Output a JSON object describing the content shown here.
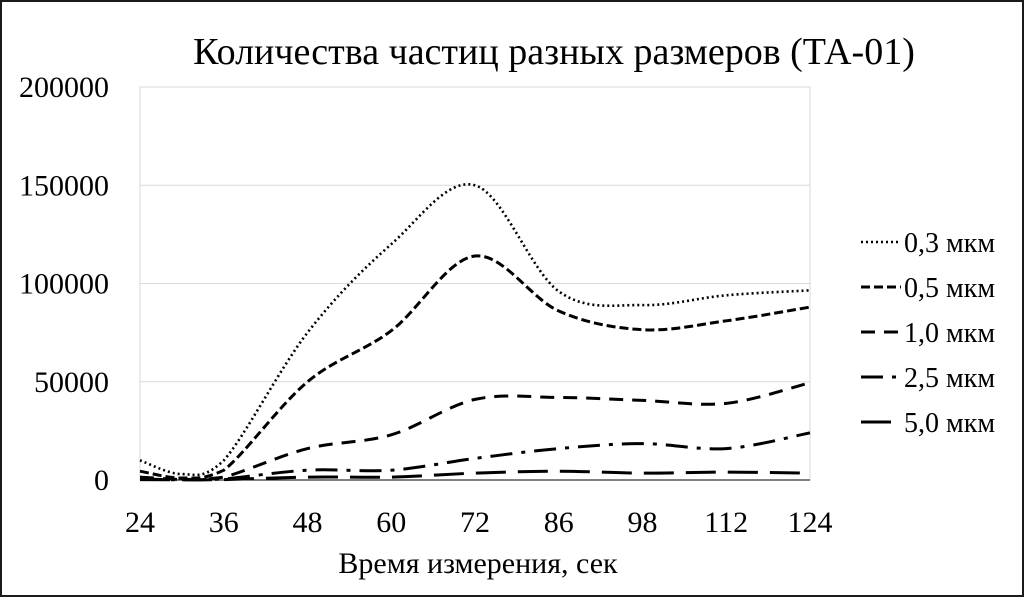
{
  "chart_data": {
    "type": "line",
    "title": "Количества частиц разных размеров (ТА-01)",
    "xlabel": "Время измерения, сек",
    "ylabel": "",
    "categories": [
      "24",
      "36",
      "48",
      "60",
      "72",
      "86",
      "98",
      "112",
      "124"
    ],
    "yticks": [
      "0",
      "50000",
      "100000",
      "150000",
      "200000"
    ],
    "ylim": [
      0,
      200000
    ],
    "grid": true,
    "legend_position": "right",
    "x": [
      24,
      30,
      36,
      48,
      60,
      72,
      86,
      98,
      112,
      124
    ],
    "series": [
      {
        "name": "0,3 мкм",
        "values": [
          10000,
          3000,
          10000,
          75000,
          120000,
          150000,
          96000,
          89000,
          94000,
          96500
        ]
      },
      {
        "name": "0,5 мкм",
        "values": [
          4500,
          1000,
          5000,
          50000,
          76000,
          114000,
          86000,
          76500,
          81000,
          88000
        ]
      },
      {
        "name": "1,0 мкм",
        "values": [
          1500,
          300,
          1500,
          16000,
          23000,
          41000,
          42000,
          40500,
          39000,
          49500
        ]
      },
      {
        "name": "2,5 мкм",
        "values": [
          500,
          100,
          500,
          5000,
          5000,
          11000,
          16000,
          18500,
          16000,
          24000
        ]
      },
      {
        "name": "5,0 мкм",
        "values": [
          200,
          100,
          200,
          1500,
          1500,
          3500,
          4500,
          3500,
          4000,
          3500
        ]
      }
    ]
  }
}
